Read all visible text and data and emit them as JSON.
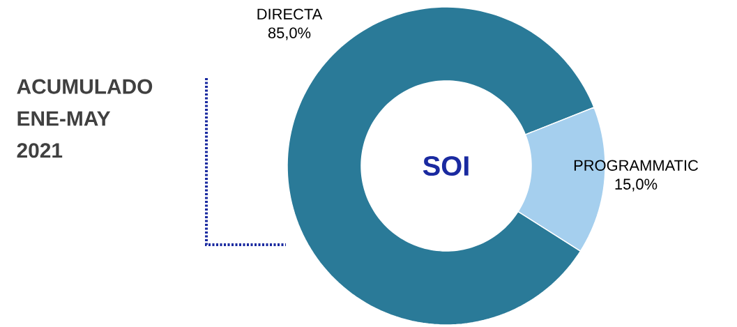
{
  "chart_data": {
    "type": "donut",
    "title": "ACUMULADO ENE-MAY 2021",
    "categories": [
      "DIRECTA",
      "PROGRAMMATIC"
    ],
    "values": [
      85,
      15
    ],
    "colors": [
      "#2a7a98",
      "#a5cfee"
    ],
    "value_labels": [
      "85,0%",
      "15,0%"
    ],
    "annotations": [
      "SOI"
    ]
  }
}
